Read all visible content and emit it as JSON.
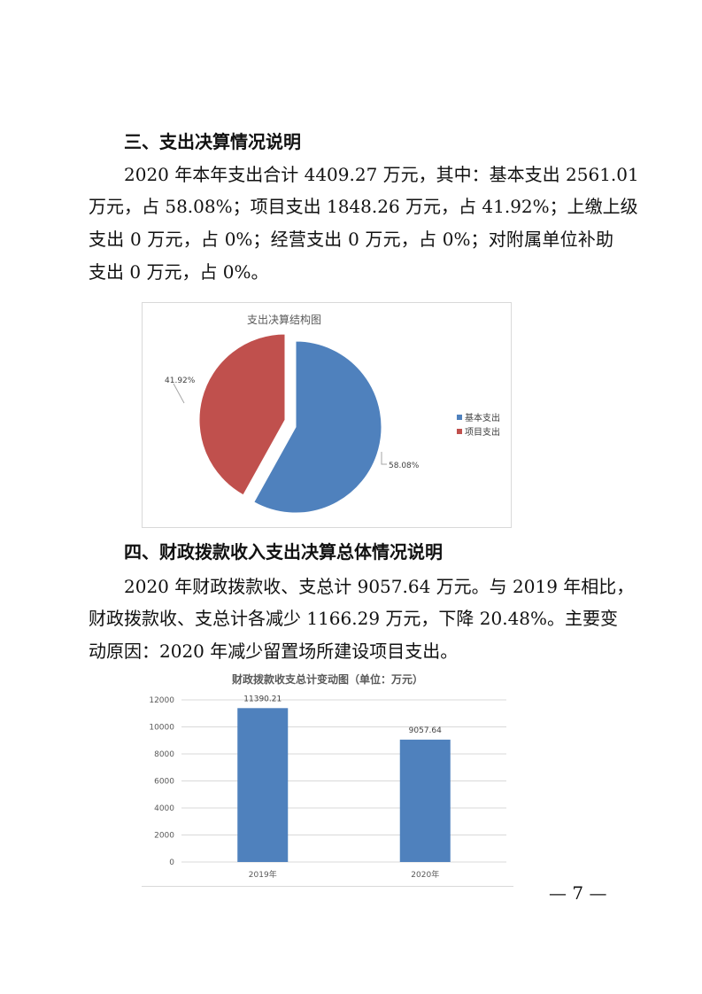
{
  "section3": {
    "heading": "三、支出决算情况说明",
    "lines": [
      "2020 年本年支出合计 4409.27 万元，其中：基本支出 2561.01",
      "万元，占 58.08%；项目支出 1848.26 万元，占 41.92%；上缴上级",
      "支出 0 万元，占 0%；经营支出 0 万元，占 0%；对附属单位补助",
      "支出 0 万元，占 0%。"
    ]
  },
  "section4": {
    "heading": "四、财政拨款收入支出决算总体情况说明",
    "lines": [
      "2020 年财政拨款收、支总计 9057.64 万元。与 2019 年相比，",
      "财政拨款收、支总计各减少 1166.29 万元，下降 20.48%。主要变",
      "动原因：2020 年减少留置场所建设项目支出。"
    ]
  },
  "page_number": "— 7 —",
  "chart_data": [
    {
      "type": "pie",
      "title": "支出决算结构图",
      "categories": [
        "基本支出",
        "项目支出"
      ],
      "values": [
        58.08,
        41.92
      ],
      "labels": [
        "58.08%",
        "41.92%"
      ],
      "colors": [
        "#4f81bd",
        "#c0504d"
      ],
      "legend": "right"
    },
    {
      "type": "bar",
      "title": "财政拨款收支总计变动图（单位：万元）",
      "categories": [
        "2019年",
        "2020年"
      ],
      "values": [
        11390.21,
        9057.64
      ],
      "labels": [
        "11390.21",
        "9057.64"
      ],
      "ylim": [
        0,
        12000
      ],
      "yticks": [
        "0",
        "2000",
        "4000",
        "6000",
        "8000",
        "10000",
        "12000"
      ],
      "grid": true,
      "color": "#4f81bd"
    }
  ]
}
